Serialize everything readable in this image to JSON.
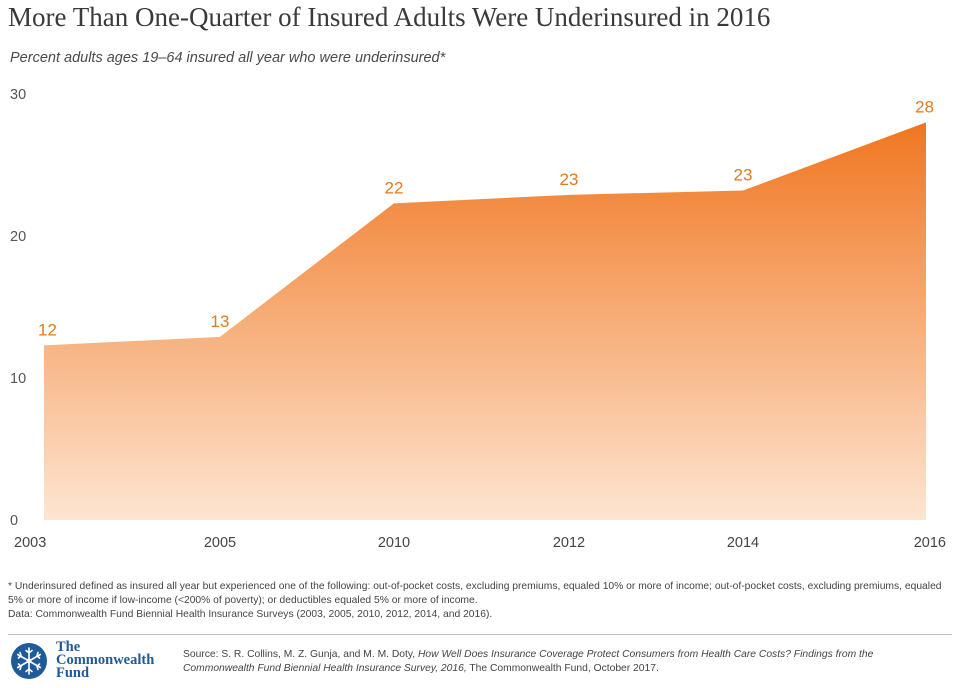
{
  "title": "More Than One-Quarter of Insured Adults Were Underinsured in 2016",
  "subtitle": "Percent adults ages 19–64 insured all year who were underinsured*",
  "chart_data": {
    "type": "area",
    "title": "More Than One-Quarter of Insured Adults Were Underinsured in 2016",
    "subtitle": "Percent adults ages 19–64 insured all year who were underinsured*",
    "categories": [
      "2003",
      "2005",
      "2010",
      "2012",
      "2014",
      "2016"
    ],
    "values": [
      12.3,
      12.9,
      22.3,
      22.9,
      23.2,
      28.0
    ],
    "data_labels": [
      "12",
      "13",
      "22",
      "23",
      "23",
      "28"
    ],
    "ylim": [
      0,
      30
    ],
    "yticks": [
      0,
      10,
      20,
      30
    ],
    "xlabel": "",
    "ylabel": "",
    "grid": false,
    "legend": "none",
    "colors": {
      "top": "#f07620",
      "bottom": "#fde5d2",
      "label": "#e07a1f"
    }
  },
  "footnote": {
    "definition": "* Underinsured defined as insured all year but experienced one of the following: out-of-pocket costs, excluding premiums, equaled 10% or more of income; out-of-pocket costs, excluding premiums, equaled 5% or more of income if low-income (<200% of poverty); or deductibles equaled 5% or more of income.",
    "data": "Data: Commonwealth Fund Biennial Health Insurance Surveys (2003, 2005, 2010, 2012, 2014, and 2016)."
  },
  "logo": {
    "line1": "The",
    "line2": "Commonwealth",
    "line3": "Fund",
    "icon": "snowflake-seal-icon",
    "color": "#1f5a99"
  },
  "source": {
    "prefix": "Source: S. R. Collins, M. Z. Gunja, and M. M. Doty, ",
    "title": "How Well Does Insurance Coverage Protect Consumers from Health Care Costs? Findings from the Commonwealth Fund Biennial Health Insurance Survey, 2016,",
    "suffix": " The Commonwealth Fund, October 2017."
  }
}
